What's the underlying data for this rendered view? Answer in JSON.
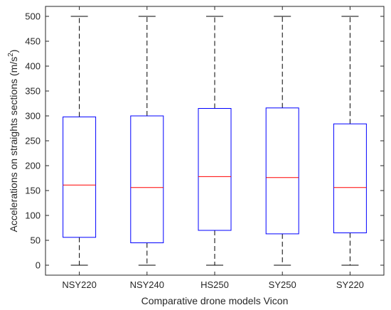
{
  "chart_data": {
    "type": "box",
    "title": "",
    "xlabel": "Comparative drone models Vicon",
    "ylabel_main": "Accelerations on straights sections (m/s",
    "ylabel_sup": "2",
    "ylabel_end": ")",
    "ylim": [
      -20,
      520
    ],
    "yticks": [
      0,
      50,
      100,
      150,
      200,
      250,
      300,
      350,
      400,
      450,
      500
    ],
    "ytick_labels": [
      "0",
      "50",
      "100",
      "150",
      "200",
      "250",
      "300",
      "350",
      "400",
      "450",
      "500"
    ],
    "categories": [
      "NSY220",
      "NSY240",
      "HS250",
      "SY250",
      "SY220"
    ],
    "boxes": [
      {
        "label": "NSY220",
        "min": 0,
        "q1": 56,
        "median": 161,
        "q3": 298,
        "max": 500
      },
      {
        "label": "NSY240",
        "min": 0,
        "q1": 45,
        "median": 156,
        "q3": 300,
        "max": 500
      },
      {
        "label": "HS250",
        "min": 0,
        "q1": 70,
        "median": 178,
        "q3": 315,
        "max": 500
      },
      {
        "label": "SY250",
        "min": 0,
        "q1": 63,
        "median": 176,
        "q3": 316,
        "max": 500
      },
      {
        "label": "SY220",
        "min": 0,
        "q1": 65,
        "median": 156,
        "q3": 284,
        "max": 500
      }
    ],
    "box_color": "#0000ff",
    "median_color": "#ff0000",
    "whisker_color": "#000000",
    "axis_color": "#262626",
    "grid": false
  }
}
